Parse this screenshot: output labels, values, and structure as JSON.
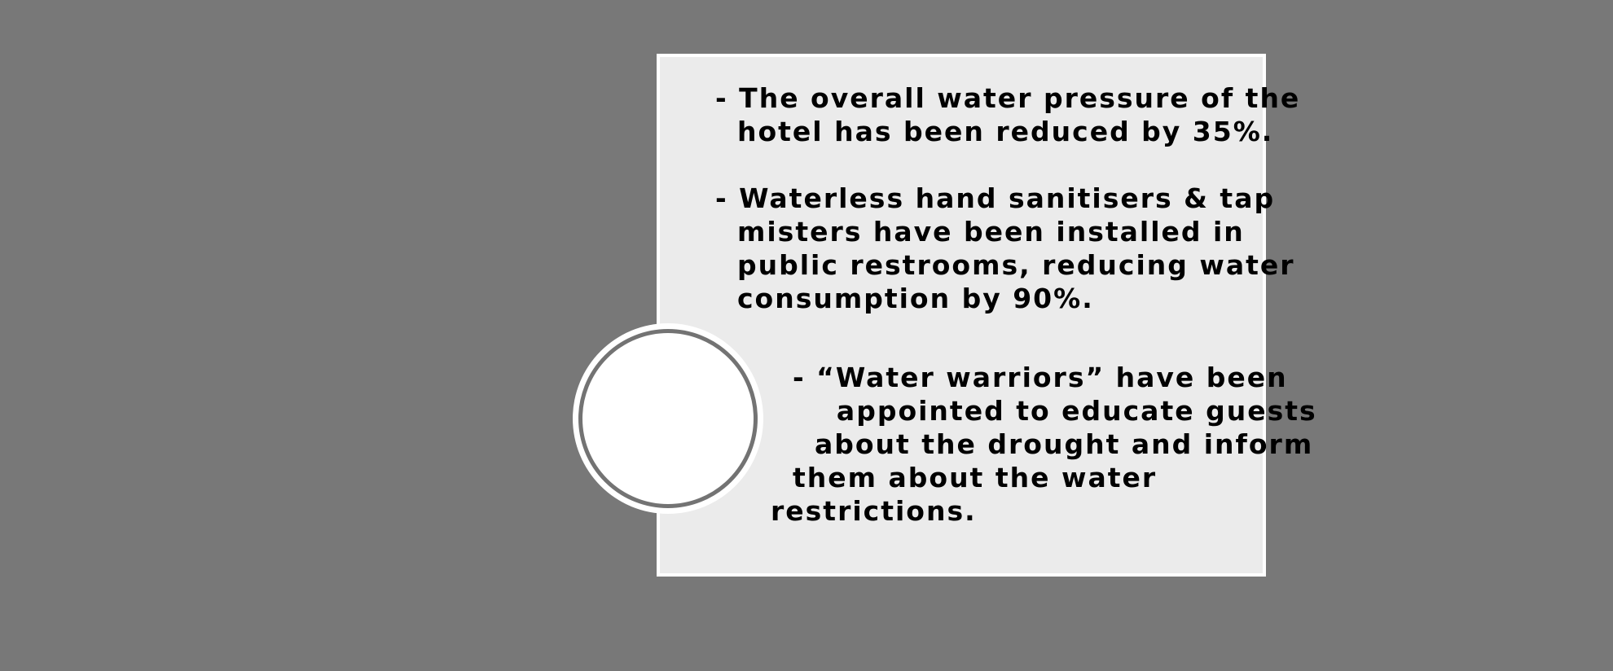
{
  "bullets": [
    {
      "lines": "- The overall water pressure of the\n  hotel has been reduced by 35%."
    },
    {
      "lines": "- Waterless hand sanitisers & tap\n  misters have been installed in\n  public restrooms, reducing water\n  consumption by 90%."
    },
    {
      "lines": "  - “Water warriors” have been\n      appointed to educate guests\n    about the drought and inform\n  them about the water\nrestrictions."
    }
  ],
  "colors": {
    "background": "#787878",
    "card": "#ebebeb",
    "card_border": "#ffffff",
    "ring": "#737373",
    "text": "#000000"
  }
}
